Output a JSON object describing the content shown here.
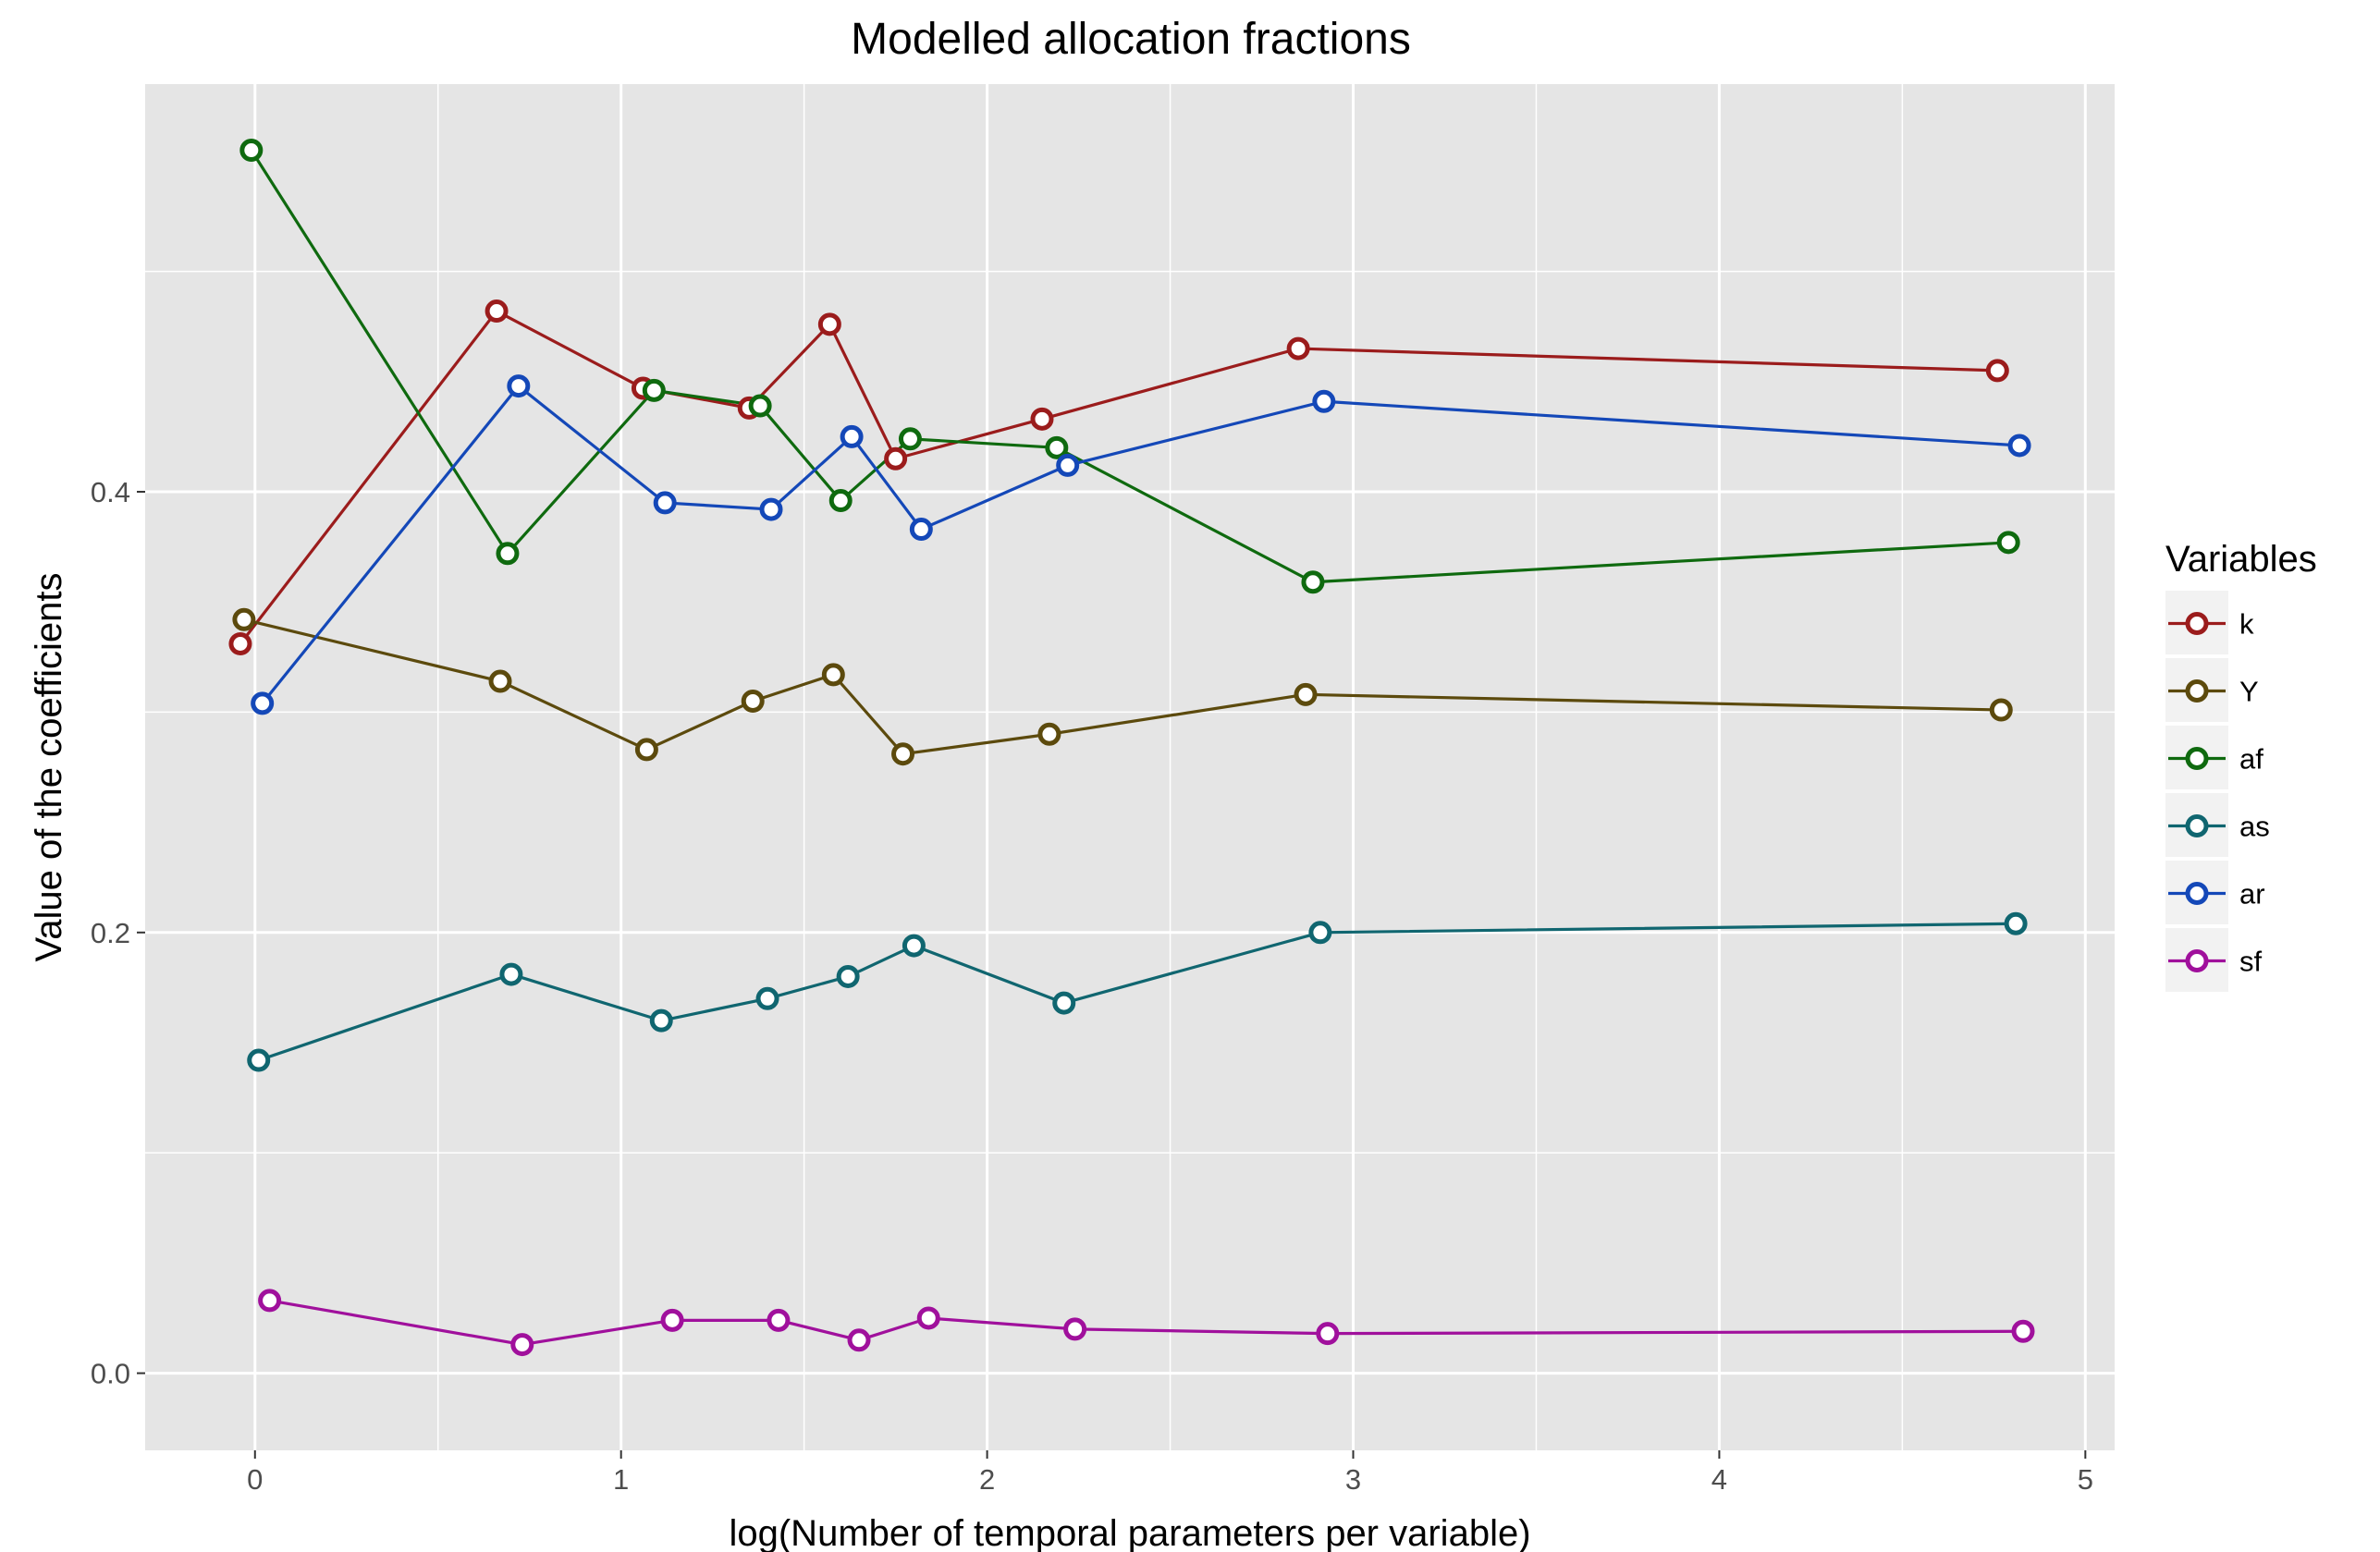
{
  "chart_data": {
    "type": "line",
    "title": "Modelled allocation fractions",
    "xlabel": "log(Number of temporal parameters per variable)",
    "ylabel": "Value of the coefficients",
    "xlim": [
      -0.3,
      5.08
    ],
    "ylim": [
      -0.035,
      0.585
    ],
    "x_ticks": [
      0,
      1,
      2,
      3,
      4,
      5
    ],
    "x_tick_labels": [
      "0",
      "1",
      "2",
      "3",
      "4",
      "5"
    ],
    "y_ticks": [
      0.0,
      0.2,
      0.4
    ],
    "y_tick_labels": [
      "0.0",
      "0.2",
      "0.4"
    ],
    "grid": true,
    "legend_position": "right",
    "legend_title": "Variables",
    "series": [
      {
        "name": "k",
        "color": "#9b1c1c",
        "x": [
          -0.04,
          0.66,
          1.06,
          1.35,
          1.57,
          1.75,
          2.15,
          2.85,
          4.76
        ],
        "y": [
          0.331,
          0.482,
          0.447,
          0.438,
          0.476,
          0.415,
          0.433,
          0.465,
          0.455
        ]
      },
      {
        "name": "Y",
        "color": "#5c4a0d",
        "x": [
          -0.03,
          0.67,
          1.07,
          1.36,
          1.58,
          1.77,
          2.17,
          2.87,
          4.77
        ],
        "y": [
          0.342,
          0.314,
          0.283,
          0.305,
          0.317,
          0.281,
          0.29,
          0.308,
          0.301
        ]
      },
      {
        "name": "af",
        "color": "#0f6a0f",
        "x": [
          -0.01,
          0.69,
          1.09,
          1.38,
          1.6,
          1.79,
          2.19,
          2.89,
          4.79
        ],
        "y": [
          0.555,
          0.372,
          0.446,
          0.439,
          0.396,
          0.424,
          0.42,
          0.359,
          0.377
        ]
      },
      {
        "name": "as",
        "color": "#106670",
        "x": [
          0.01,
          0.7,
          1.11,
          1.4,
          1.62,
          1.8,
          2.21,
          2.91,
          4.81
        ],
        "y": [
          0.142,
          0.181,
          0.16,
          0.17,
          0.18,
          0.194,
          0.168,
          0.2,
          0.204
        ]
      },
      {
        "name": "ar",
        "color": "#1448b8",
        "x": [
          0.02,
          0.72,
          1.12,
          1.41,
          1.63,
          1.82,
          2.22,
          2.92,
          4.82
        ],
        "y": [
          0.304,
          0.448,
          0.395,
          0.392,
          0.425,
          0.383,
          0.412,
          0.441,
          0.421
        ]
      },
      {
        "name": "sf",
        "color": "#a0109c",
        "x": [
          0.04,
          0.73,
          1.14,
          1.43,
          1.65,
          1.84,
          2.24,
          2.93,
          4.83
        ],
        "y": [
          0.033,
          0.013,
          0.024,
          0.024,
          0.015,
          0.025,
          0.02,
          0.018,
          0.019
        ]
      }
    ]
  }
}
